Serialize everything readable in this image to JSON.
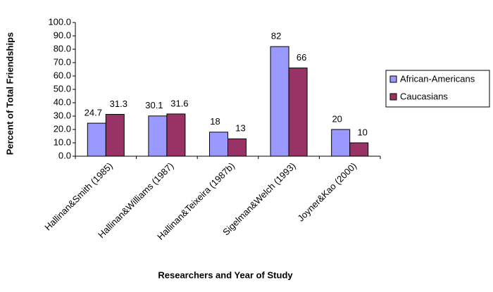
{
  "chart_data": {
    "type": "bar",
    "x_label": "Researchers and Year of Study",
    "y_label": "Percent of Total Friendships",
    "categories": [
      "Hallinan&Smith (1985)",
      "Hallinan&Williams (1987)",
      "Hallinan&Teixeira (1987b)",
      "Sigelman&Welch (1993)",
      "Joyner&Kao (2000)"
    ],
    "series": [
      {
        "name": "African-Americans",
        "color": "#9999ff",
        "values": [
          24.7,
          30.1,
          18,
          82,
          20
        ]
      },
      {
        "name": "Caucasians",
        "color": "#993366",
        "values": [
          31.3,
          31.6,
          13,
          66,
          10
        ]
      }
    ],
    "ylim": [
      0,
      100
    ],
    "yticks": [
      {
        "value": 0,
        "label": "0.0"
      },
      {
        "value": 10,
        "label": "10.0"
      },
      {
        "value": 20,
        "label": "20.0"
      },
      {
        "value": 30,
        "label": "30.0"
      },
      {
        "value": 40,
        "label": "40.0"
      },
      {
        "value": 50,
        "label": "50.0"
      },
      {
        "value": 60,
        "label": "60.0"
      },
      {
        "value": 70,
        "label": "70.0"
      },
      {
        "value": 80,
        "label": "80.0"
      },
      {
        "value": 90,
        "label": "90.0"
      },
      {
        "value": 100,
        "label": "100.0"
      }
    ],
    "grid": false,
    "legend": "right"
  }
}
